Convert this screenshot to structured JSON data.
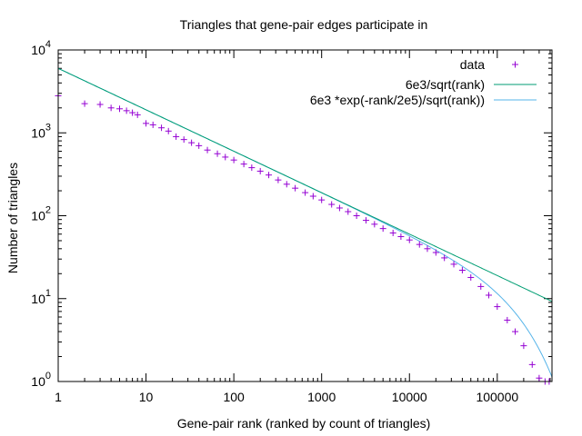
{
  "chart_data": {
    "type": "scatter",
    "title": "Triangles that gene-pair edges participate in",
    "xlabel": "Gene-pair rank (ranked by count of triangles)",
    "ylabel": "Number of triangles",
    "x_scale": "log",
    "y_scale": "log",
    "xlim": [
      1,
      420000
    ],
    "ylim": [
      1,
      10000
    ],
    "x_ticks": [
      {
        "value": 1,
        "label": "1"
      },
      {
        "value": 10,
        "label": "10"
      },
      {
        "value": 100,
        "label": "100"
      },
      {
        "value": 1000,
        "label": "1000"
      },
      {
        "value": 10000,
        "label": "10000"
      },
      {
        "value": 100000,
        "label": "100000"
      }
    ],
    "y_ticks": [
      {
        "value": 1,
        "base": "10",
        "exp": "0"
      },
      {
        "value": 10,
        "base": "10",
        "exp": "1"
      },
      {
        "value": 100,
        "base": "10",
        "exp": "2"
      },
      {
        "value": 1000,
        "base": "10",
        "exp": "3"
      },
      {
        "value": 10000,
        "base": "10",
        "exp": "4"
      }
    ],
    "legend_position": "top-right",
    "grid": false,
    "series": [
      {
        "name": "data",
        "style": "points",
        "marker": "+",
        "color": "#9400d3",
        "x": [
          1,
          2,
          3,
          4,
          5,
          6,
          7,
          8,
          10,
          12,
          15,
          18,
          22,
          27,
          33,
          40,
          50,
          65,
          80,
          100,
          130,
          160,
          200,
          250,
          320,
          400,
          500,
          650,
          800,
          1000,
          1300,
          1600,
          2000,
          2500,
          3200,
          4000,
          5000,
          6500,
          8000,
          10000,
          13000,
          16000,
          20000,
          25000,
          32000,
          40000,
          50000,
          65000,
          80000,
          100000,
          130000,
          160000,
          200000,
          250000,
          300000,
          350000,
          390000
        ],
        "y": [
          2800,
          2250,
          2200,
          2000,
          1950,
          1850,
          1750,
          1650,
          1300,
          1250,
          1150,
          1050,
          900,
          830,
          760,
          700,
          620,
          560,
          510,
          470,
          420,
          380,
          345,
          310,
          270,
          240,
          215,
          190,
          172,
          155,
          137,
          124,
          112,
          100,
          88,
          79,
          70,
          62,
          56,
          51,
          45,
          40,
          36,
          31,
          26,
          22,
          18,
          14,
          11,
          8,
          5.5,
          4,
          2.7,
          1.6,
          1.1,
          1,
          1
        ]
      },
      {
        "name": "6e3/sqrt(rank)",
        "style": "line",
        "formula": "6000/sqrt(x)",
        "color": "#009e73"
      },
      {
        "name": "6e3 *exp(-rank/2e5)/sqrt(rank))",
        "style": "line",
        "formula": "6000*exp(-x/200000)/sqrt(x)",
        "color": "#56b4e9"
      }
    ]
  }
}
